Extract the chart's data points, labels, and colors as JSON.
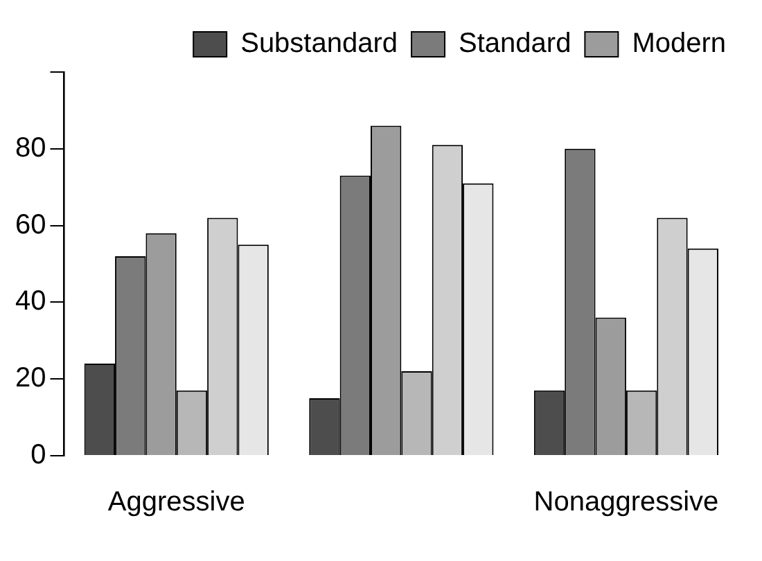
{
  "chart_data": {
    "type": "bar",
    "categories": [
      "Aggressive",
      null,
      "Nonaggressive"
    ],
    "series": [
      {
        "name": "Substandard",
        "color": "#4d4d4d",
        "values": [
          24,
          15,
          17
        ]
      },
      {
        "name": "Standard",
        "color": "#7b7b7b",
        "values": [
          52,
          73,
          80
        ]
      },
      {
        "name": "Modern",
        "color": "#9c9c9c",
        "values": [
          58,
          86,
          36
        ]
      },
      {
        "color": "#b7b7b7",
        "values": [
          17,
          22,
          17
        ]
      },
      {
        "color": "#cfcfcf",
        "values": [
          62,
          81,
          62
        ]
      },
      {
        "color": "#e6e6e6",
        "values": [
          55,
          71,
          54
        ]
      }
    ],
    "ylim": [
      0,
      100
    ],
    "yticks": [
      0,
      20,
      40,
      60,
      80,
      {
        "value": 100,
        "label": null
      }
    ],
    "grid": false,
    "legend": "top right"
  }
}
